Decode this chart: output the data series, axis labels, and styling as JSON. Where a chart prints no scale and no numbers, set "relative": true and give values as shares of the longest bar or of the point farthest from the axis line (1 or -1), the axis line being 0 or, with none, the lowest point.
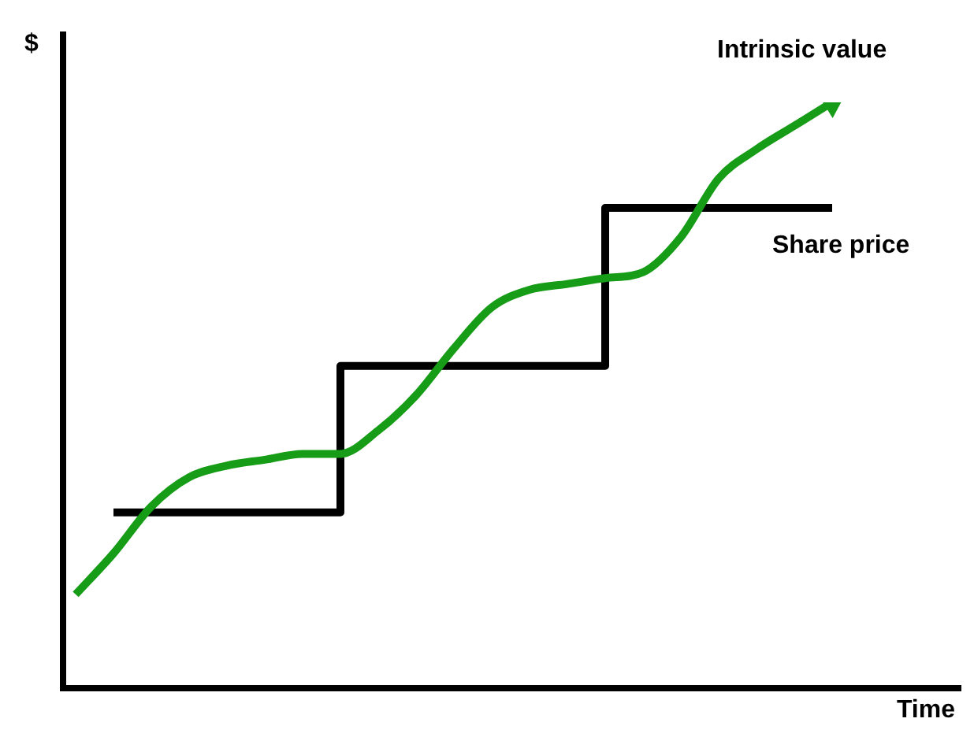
{
  "chart_data": {
    "type": "line",
    "xlabel": "Time",
    "ylabel": "$",
    "relative": true,
    "legend": false,
    "categories": [
      null,
      null,
      null,
      null,
      null,
      null,
      null,
      null,
      null,
      null,
      null,
      null,
      null,
      null,
      null,
      null,
      null,
      null,
      null,
      null,
      null
    ],
    "series": [
      {
        "name": "Intrinsic value",
        "type": "line",
        "color": "#169c16",
        "values": [
          0.16,
          0.23,
          0.31,
          0.36,
          0.38,
          0.39,
          0.4,
          0.4,
          0.44,
          0.5,
          0.58,
          0.65,
          0.68,
          0.69,
          0.7,
          0.71,
          0.77,
          0.87,
          0.92,
          0.96,
          1
        ]
      },
      {
        "name": "Share price",
        "type": "step",
        "color": "#000000",
        "values": [
          null,
          0.3,
          0.3,
          0.3,
          0.3,
          0.3,
          0.3,
          0.55,
          0.55,
          0.55,
          0.55,
          0.55,
          0.55,
          0.55,
          0.82,
          0.82,
          0.82,
          0.82,
          0.82,
          0.82,
          0.82
        ]
      }
    ]
  }
}
